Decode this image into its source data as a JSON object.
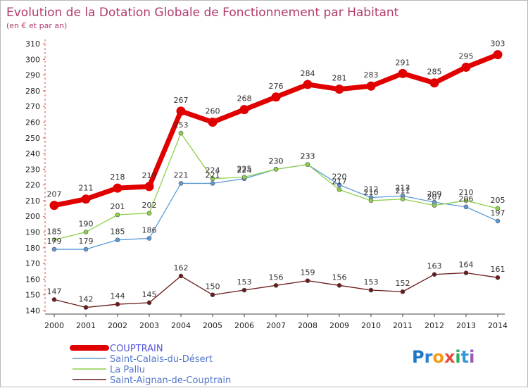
{
  "chart_data": {
    "type": "line",
    "title": "Evolution de la Dotation Globale de Fonctionnement par Habitant",
    "subtitle": "(en € et par an)",
    "x": [
      "2000",
      "2001",
      "2002",
      "2003",
      "2004",
      "2005",
      "2006",
      "2007",
      "2008",
      "2009",
      "2010",
      "2011",
      "2012",
      "2013",
      "2014"
    ],
    "ylim": [
      140,
      310
    ],
    "yticks": [
      140,
      150,
      160,
      170,
      180,
      190,
      200,
      210,
      220,
      230,
      240,
      250,
      260,
      270,
      280,
      290,
      300,
      310
    ],
    "grid": false,
    "legend_position": "bottom-left",
    "series": [
      {
        "name": "COUPTRAIN",
        "color": "#e00000",
        "values": [
          207,
          211,
          218,
          219,
          267,
          260,
          268,
          276,
          284,
          281,
          283,
          291,
          285,
          295,
          303
        ]
      },
      {
        "name": "Saint-Calais-du-Désert",
        "color": "#5b9bd5",
        "values": [
          179,
          179,
          185,
          186,
          221,
          221,
          224,
          230,
          233,
          220,
          212,
          213,
          209,
          206,
          197
        ]
      },
      {
        "name": "La Pallu",
        "color": "#8ed04a",
        "values": [
          185,
          190,
          201,
          202,
          253,
          224,
          225,
          230,
          233,
          217,
          210,
          211,
          207,
          210,
          205
        ]
      },
      {
        "name": "Saint-Aignan-de-Couptrain",
        "color": "#6b1a1a",
        "values": [
          147,
          142,
          144,
          145,
          162,
          150,
          153,
          156,
          159,
          156,
          153,
          152,
          163,
          164,
          161
        ]
      }
    ]
  },
  "logo": {
    "text": "Proxiti",
    "letters": [
      "P",
      "r",
      "o",
      "x",
      "i",
      "t",
      "i"
    ],
    "colors": [
      "#1f77c8",
      "#2a7fd0",
      "#f39c12",
      "#e74c3c",
      "#27ae60",
      "#3498db",
      "#9b59b6"
    ]
  }
}
